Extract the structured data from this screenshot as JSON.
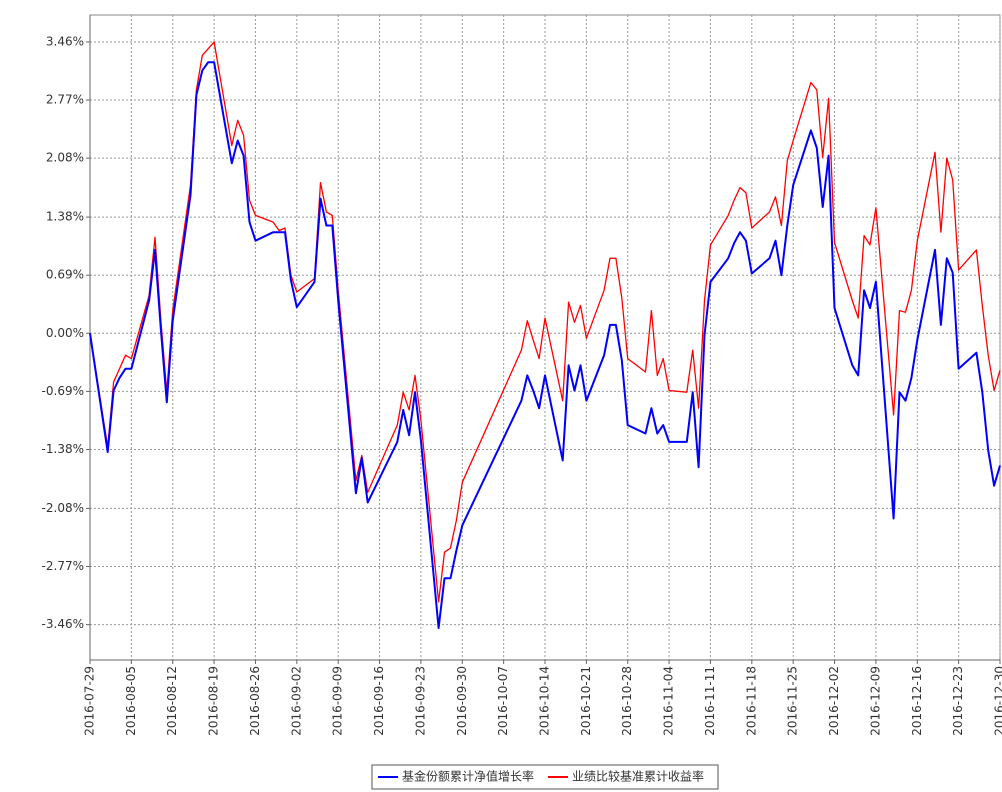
{
  "chart_data": {
    "type": "line",
    "x": [
      "2016-07-29",
      "2016-08-01",
      "2016-08-02",
      "2016-08-03",
      "2016-08-04",
      "2016-08-05",
      "2016-08-08",
      "2016-08-09",
      "2016-08-10",
      "2016-08-11",
      "2016-08-12",
      "2016-08-15",
      "2016-08-16",
      "2016-08-17",
      "2016-08-18",
      "2016-08-19",
      "2016-08-22",
      "2016-08-23",
      "2016-08-24",
      "2016-08-25",
      "2016-08-26",
      "2016-08-29",
      "2016-08-30",
      "2016-08-31",
      "2016-09-01",
      "2016-09-02",
      "2016-09-05",
      "2016-09-06",
      "2016-09-07",
      "2016-09-08",
      "2016-09-09",
      "2016-09-12",
      "2016-09-13",
      "2016-09-14",
      "2016-09-19",
      "2016-09-20",
      "2016-09-21",
      "2016-09-22",
      "2016-09-23",
      "2016-09-26",
      "2016-09-27",
      "2016-09-28",
      "2016-09-29",
      "2016-09-30",
      "2016-10-10",
      "2016-10-11",
      "2016-10-12",
      "2016-10-13",
      "2016-10-14",
      "2016-10-17",
      "2016-10-18",
      "2016-10-19",
      "2016-10-20",
      "2016-10-21",
      "2016-10-24",
      "2016-10-25",
      "2016-10-26",
      "2016-10-27",
      "2016-10-28",
      "2016-10-31",
      "2016-11-01",
      "2016-11-02",
      "2016-11-03",
      "2016-11-04",
      "2016-11-07",
      "2016-11-08",
      "2016-11-09",
      "2016-11-10",
      "2016-11-11",
      "2016-11-14",
      "2016-11-15",
      "2016-11-16",
      "2016-11-17",
      "2016-11-18",
      "2016-11-21",
      "2016-11-22",
      "2016-11-23",
      "2016-11-24",
      "2016-11-25",
      "2016-11-28",
      "2016-11-29",
      "2016-11-30",
      "2016-12-01",
      "2016-12-02",
      "2016-12-05",
      "2016-12-06",
      "2016-12-07",
      "2016-12-08",
      "2016-12-09",
      "2016-12-12",
      "2016-12-13",
      "2016-12-14",
      "2016-12-15",
      "2016-12-16",
      "2016-12-19",
      "2016-12-20",
      "2016-12-21",
      "2016-12-22",
      "2016-12-23",
      "2016-12-26",
      "2016-12-27",
      "2016-12-28",
      "2016-12-29",
      "2016-12-30"
    ],
    "series": [
      {
        "name": "基金份额累计净值增长率",
        "color": "#0000ff",
        "values": [
          0,
          -1.41,
          -0.68,
          -0.53,
          -0.42,
          -0.42,
          0.39,
          0.99,
          0.04,
          -0.82,
          0.15,
          1.64,
          2.83,
          3.12,
          3.22,
          3.22,
          2.02,
          2.29,
          2.11,
          1.32,
          1.1,
          1.2,
          1.2,
          1.2,
          0.63,
          0.31,
          0.61,
          1.6,
          1.28,
          1.28,
          0.39,
          -1.9,
          -1.48,
          -2.01,
          -1.29,
          -0.91,
          -1.21,
          -0.7,
          -1.27,
          -3.5,
          -2.91,
          -2.91,
          -2.58,
          -2.28,
          -0.8,
          -0.5,
          -0.68,
          -0.89,
          -0.5,
          -1.51,
          -0.38,
          -0.68,
          -0.38,
          -0.8,
          -0.26,
          0.1,
          0.1,
          -0.32,
          -1.09,
          -1.19,
          -0.89,
          -1.19,
          -1.09,
          -1.29,
          -1.29,
          -0.7,
          -1.59,
          -0.02,
          0.61,
          0.89,
          1.07,
          1.2,
          1.1,
          0.71,
          0.89,
          1.1,
          0.69,
          1.28,
          1.76,
          2.41,
          2.2,
          1.5,
          2.11,
          0.3,
          -0.38,
          -0.5,
          0.51,
          0.3,
          0.61,
          -2.2,
          -0.7,
          -0.8,
          -0.53,
          -0.08,
          0.99,
          0.1,
          0.89,
          0.72,
          -0.42,
          -0.23,
          -0.7,
          -1.39,
          -1.81,
          -1.57
        ]
      },
      {
        "name": "业绩比较基准累计收益率",
        "color": "#ff0000",
        "values": [
          0,
          -1.35,
          -0.58,
          -0.42,
          -0.26,
          -0.3,
          0.45,
          1.14,
          0.15,
          -0.7,
          0.27,
          1.76,
          2.89,
          3.3,
          3.38,
          3.46,
          2.23,
          2.53,
          2.35,
          1.58,
          1.4,
          1.32,
          1.22,
          1.25,
          0.69,
          0.49,
          0.65,
          1.79,
          1.44,
          1.4,
          0.51,
          -1.75,
          -1.45,
          -1.89,
          -1.09,
          -0.7,
          -0.91,
          -0.5,
          -1.03,
          -3.19,
          -2.6,
          -2.55,
          -2.22,
          -1.77,
          -0.2,
          0.15,
          -0.08,
          -0.3,
          0.18,
          -0.8,
          0.37,
          0.13,
          0.33,
          -0.06,
          0.51,
          0.89,
          0.89,
          0.42,
          -0.3,
          -0.46,
          0.27,
          -0.5,
          -0.3,
          -0.68,
          -0.7,
          -0.2,
          -0.89,
          0.39,
          1.05,
          1.4,
          1.58,
          1.73,
          1.67,
          1.25,
          1.44,
          1.62,
          1.28,
          2.05,
          2.29,
          2.98,
          2.89,
          2.09,
          2.79,
          1.08,
          0.39,
          0.18,
          1.16,
          1.05,
          1.49,
          -0.97,
          0.27,
          0.25,
          0.51,
          1.1,
          2.15,
          1.2,
          2.08,
          1.82,
          0.75,
          0.99,
          0.33,
          -0.26,
          -0.68,
          -0.44
        ]
      }
    ],
    "xlim": [
      "2016-07-29",
      "2016-12-30"
    ],
    "xticks": [
      "2016-07-29",
      "2016-08-05",
      "2016-08-12",
      "2016-08-19",
      "2016-08-26",
      "2016-09-02",
      "2016-09-09",
      "2016-09-16",
      "2016-09-23",
      "2016-09-30",
      "2016-10-07",
      "2016-10-14",
      "2016-10-21",
      "2016-10-28",
      "2016-11-04",
      "2016-11-11",
      "2016-11-18",
      "2016-11-25",
      "2016-12-02",
      "2016-12-09",
      "2016-12-16",
      "2016-12-23",
      "2016-12-30"
    ],
    "ylim": [
      -3.88,
      3.78
    ],
    "yticks": [
      {
        "value": 3.46,
        "label": "3.46%"
      },
      {
        "value": 2.77,
        "label": "2.77%"
      },
      {
        "value": 2.08,
        "label": "2.08%"
      },
      {
        "value": 1.38,
        "label": "1.38%"
      },
      {
        "value": 0.69,
        "label": "0.69%"
      },
      {
        "value": 0,
        "label": "0.00%"
      },
      {
        "value": -0.69,
        "label": "-0.69%"
      },
      {
        "value": -1.38,
        "label": "-1.38%"
      },
      {
        "value": -2.08,
        "label": "-2.08%"
      },
      {
        "value": -2.77,
        "label": "-2.77%"
      },
      {
        "value": -3.46,
        "label": "-3.46%"
      }
    ],
    "grid": true,
    "legend": "bottom"
  }
}
